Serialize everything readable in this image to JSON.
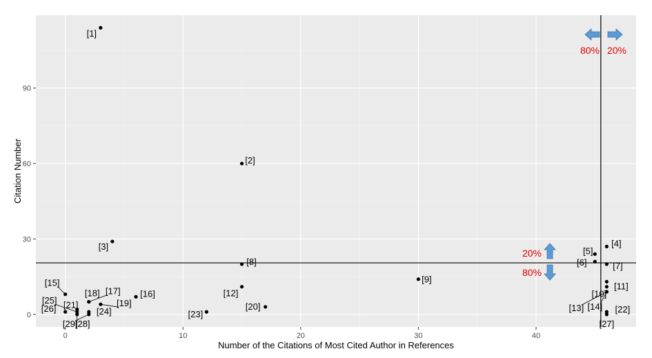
{
  "colors": {
    "panel": "#ebebeb",
    "grid_major": "#ffffff",
    "grid_minor": "#f4f4f4",
    "point": "#000000",
    "threshold_line": "#000000",
    "arrow": "#5b9bd5",
    "percent_text": "#e00000"
  },
  "chart_data": {
    "type": "scatter",
    "title": "",
    "xlabel": "Number of the Citations of Most Cited Author in References",
    "ylabel": "Citation Number",
    "xlim": [
      -2.5,
      48.5
    ],
    "ylim": [
      -5,
      119
    ],
    "xticks": [
      0,
      10,
      20,
      30,
      40
    ],
    "yticks": [
      0,
      30,
      60,
      90
    ],
    "grid": true,
    "legend": "none",
    "points": [
      {
        "label": "[1]",
        "x": 3,
        "y": 114
      },
      {
        "label": "[2]",
        "x": 15,
        "y": 60
      },
      {
        "label": "[3]",
        "x": 4,
        "y": 29
      },
      {
        "label": "[4]",
        "x": 46,
        "y": 27
      },
      {
        "label": "[5]",
        "x": 45,
        "y": 24
      },
      {
        "label": "[6]",
        "x": 45,
        "y": 21
      },
      {
        "label": "[7]",
        "x": 46,
        "y": 20
      },
      {
        "label": "[8]",
        "x": 15,
        "y": 20
      },
      {
        "label": "[9]",
        "x": 30,
        "y": 14
      },
      {
        "label": "[10]",
        "x": 46,
        "y": 13
      },
      {
        "label": "[11]",
        "x": 46,
        "y": 11
      },
      {
        "label": "[12]",
        "x": 15,
        "y": 11
      },
      {
        "label": "[13]",
        "x": 46,
        "y": 9
      },
      {
        "label": "[14]",
        "x": 46,
        "y": 9
      },
      {
        "label": "[15]",
        "x": 0,
        "y": 8
      },
      {
        "label": "[16]",
        "x": 6,
        "y": 7
      },
      {
        "label": "[17]",
        "x": 2,
        "y": 5
      },
      {
        "label": "[18]",
        "x": 2,
        "y": 5
      },
      {
        "label": "[19]",
        "x": 3,
        "y": 4
      },
      {
        "label": "[20]",
        "x": 17,
        "y": 3
      },
      {
        "label": "[21]",
        "x": 1,
        "y": 2
      },
      {
        "label": "[22]",
        "x": 46,
        "y": 1
      },
      {
        "label": "[23]",
        "x": 12,
        "y": 1
      },
      {
        "label": "[24]",
        "x": 2,
        "y": 1
      },
      {
        "label": "[25]",
        "x": 1,
        "y": 1
      },
      {
        "label": "[26]",
        "x": 0,
        "y": 1
      },
      {
        "label": "[27]",
        "x": 46,
        "y": 0
      },
      {
        "label": "[28]",
        "x": 1,
        "y": 0
      },
      {
        "label": "[29]",
        "x": 2,
        "y": 0
      }
    ],
    "reference_lines": {
      "vertical_x": 45.5,
      "horizontal_y": 20.5
    },
    "annotations": {
      "left_pct": "80%",
      "right_pct": "20%",
      "up_pct": "20%",
      "down_pct": "80%"
    }
  }
}
